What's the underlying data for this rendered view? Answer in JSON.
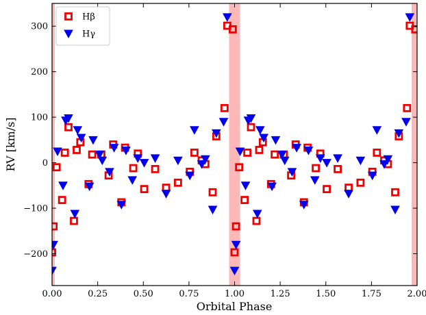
{
  "chart_data": {
    "type": "scatter",
    "xlabel": "Orbital Phase",
    "ylabel": "RV [km/s]",
    "xlim": [
      0.0,
      2.0
    ],
    "ylim": [
      -270,
      350
    ],
    "xticks": [
      0.0,
      0.25,
      0.5,
      0.75,
      1.0,
      1.25,
      1.5,
      1.75,
      2.0
    ],
    "xtick_labels": [
      "0.00",
      "0.25",
      "0.50",
      "0.75",
      "1.00",
      "1.25",
      "1.50",
      "1.75",
      "2.00"
    ],
    "yticks": [
      -200,
      -100,
      0,
      100,
      200,
      300
    ],
    "ytick_labels": [
      "−200",
      "−100",
      "0",
      "100",
      "200",
      "300"
    ],
    "grid": false,
    "legend_position": "top-left",
    "shaded_bands": [
      {
        "x0": -0.015,
        "x1": 0.015,
        "color": "#ff9a9a"
      },
      {
        "x0": 0.97,
        "x1": 1.03,
        "color": "#ff9a9a"
      },
      {
        "x0": 1.97,
        "x1": 2.03,
        "color": "#ff9a9a"
      }
    ],
    "series": [
      {
        "name": "Hβ",
        "marker": "square-open",
        "color": "#ee0000",
        "points": [
          [
            0.0,
            -197
          ],
          [
            0.008,
            -140
          ],
          [
            0.025,
            -10
          ],
          [
            0.055,
            -82
          ],
          [
            0.07,
            22
          ],
          [
            0.09,
            78
          ],
          [
            0.12,
            -128
          ],
          [
            0.135,
            28
          ],
          [
            0.155,
            45
          ],
          [
            0.2,
            -47
          ],
          [
            0.22,
            18
          ],
          [
            0.27,
            18
          ],
          [
            0.31,
            -28
          ],
          [
            0.335,
            40
          ],
          [
            0.38,
            -87
          ],
          [
            0.4,
            33
          ],
          [
            0.445,
            -12
          ],
          [
            0.47,
            20
          ],
          [
            0.505,
            -58
          ],
          [
            0.565,
            -14
          ],
          [
            0.625,
            -55
          ],
          [
            0.69,
            -44
          ],
          [
            0.755,
            -20
          ],
          [
            0.78,
            22
          ],
          [
            0.82,
            5
          ],
          [
            0.84,
            -3
          ],
          [
            0.88,
            -65
          ],
          [
            0.9,
            58
          ],
          [
            0.945,
            120
          ],
          [
            0.96,
            301
          ],
          [
            0.99,
            293
          ],
          [
            1.0,
            -197
          ],
          [
            1.008,
            -140
          ],
          [
            1.025,
            -10
          ],
          [
            1.055,
            -82
          ],
          [
            1.07,
            22
          ],
          [
            1.09,
            78
          ],
          [
            1.12,
            -128
          ],
          [
            1.135,
            28
          ],
          [
            1.155,
            45
          ],
          [
            1.2,
            -47
          ],
          [
            1.22,
            18
          ],
          [
            1.27,
            18
          ],
          [
            1.31,
            -28
          ],
          [
            1.335,
            40
          ],
          [
            1.38,
            -87
          ],
          [
            1.4,
            33
          ],
          [
            1.445,
            -12
          ],
          [
            1.47,
            20
          ],
          [
            1.505,
            -58
          ],
          [
            1.565,
            -14
          ],
          [
            1.625,
            -55
          ],
          [
            1.69,
            -44
          ],
          [
            1.755,
            -20
          ],
          [
            1.78,
            22
          ],
          [
            1.82,
            5
          ],
          [
            1.84,
            -3
          ],
          [
            1.88,
            -65
          ],
          [
            1.9,
            58
          ],
          [
            1.945,
            120
          ],
          [
            1.96,
            301
          ],
          [
            1.99,
            293
          ]
        ]
      },
      {
        "name": "Hγ",
        "marker": "triangle-down",
        "color": "#0000ee",
        "points": [
          [
            0.0,
            -237
          ],
          [
            0.008,
            -180
          ],
          [
            0.03,
            25
          ],
          [
            0.06,
            -50
          ],
          [
            0.075,
            93
          ],
          [
            0.09,
            98
          ],
          [
            0.125,
            -112
          ],
          [
            0.14,
            72
          ],
          [
            0.16,
            55
          ],
          [
            0.205,
            -52
          ],
          [
            0.225,
            50
          ],
          [
            0.26,
            18
          ],
          [
            0.275,
            5
          ],
          [
            0.315,
            -20
          ],
          [
            0.34,
            33
          ],
          [
            0.38,
            -92
          ],
          [
            0.405,
            27
          ],
          [
            0.44,
            -38
          ],
          [
            0.47,
            10
          ],
          [
            0.505,
            0
          ],
          [
            0.565,
            10
          ],
          [
            0.625,
            -68
          ],
          [
            0.69,
            5
          ],
          [
            0.755,
            -28
          ],
          [
            0.78,
            72
          ],
          [
            0.82,
            -3
          ],
          [
            0.84,
            8
          ],
          [
            0.88,
            -103
          ],
          [
            0.9,
            65
          ],
          [
            0.94,
            90
          ],
          [
            0.96,
            320
          ],
          [
            1.0,
            -237
          ],
          [
            1.008,
            -180
          ],
          [
            1.03,
            25
          ],
          [
            1.06,
            -50
          ],
          [
            1.075,
            93
          ],
          [
            1.09,
            98
          ],
          [
            1.125,
            -112
          ],
          [
            1.14,
            72
          ],
          [
            1.16,
            55
          ],
          [
            1.205,
            -52
          ],
          [
            1.225,
            50
          ],
          [
            1.26,
            18
          ],
          [
            1.275,
            5
          ],
          [
            1.315,
            -20
          ],
          [
            1.34,
            33
          ],
          [
            1.38,
            -92
          ],
          [
            1.405,
            27
          ],
          [
            1.44,
            -38
          ],
          [
            1.47,
            10
          ],
          [
            1.505,
            0
          ],
          [
            1.565,
            10
          ],
          [
            1.625,
            -68
          ],
          [
            1.69,
            5
          ],
          [
            1.755,
            -28
          ],
          [
            1.78,
            72
          ],
          [
            1.82,
            -3
          ],
          [
            1.84,
            8
          ],
          [
            1.88,
            -103
          ],
          [
            1.9,
            65
          ],
          [
            1.94,
            90
          ],
          [
            1.96,
            320
          ]
        ]
      }
    ]
  }
}
